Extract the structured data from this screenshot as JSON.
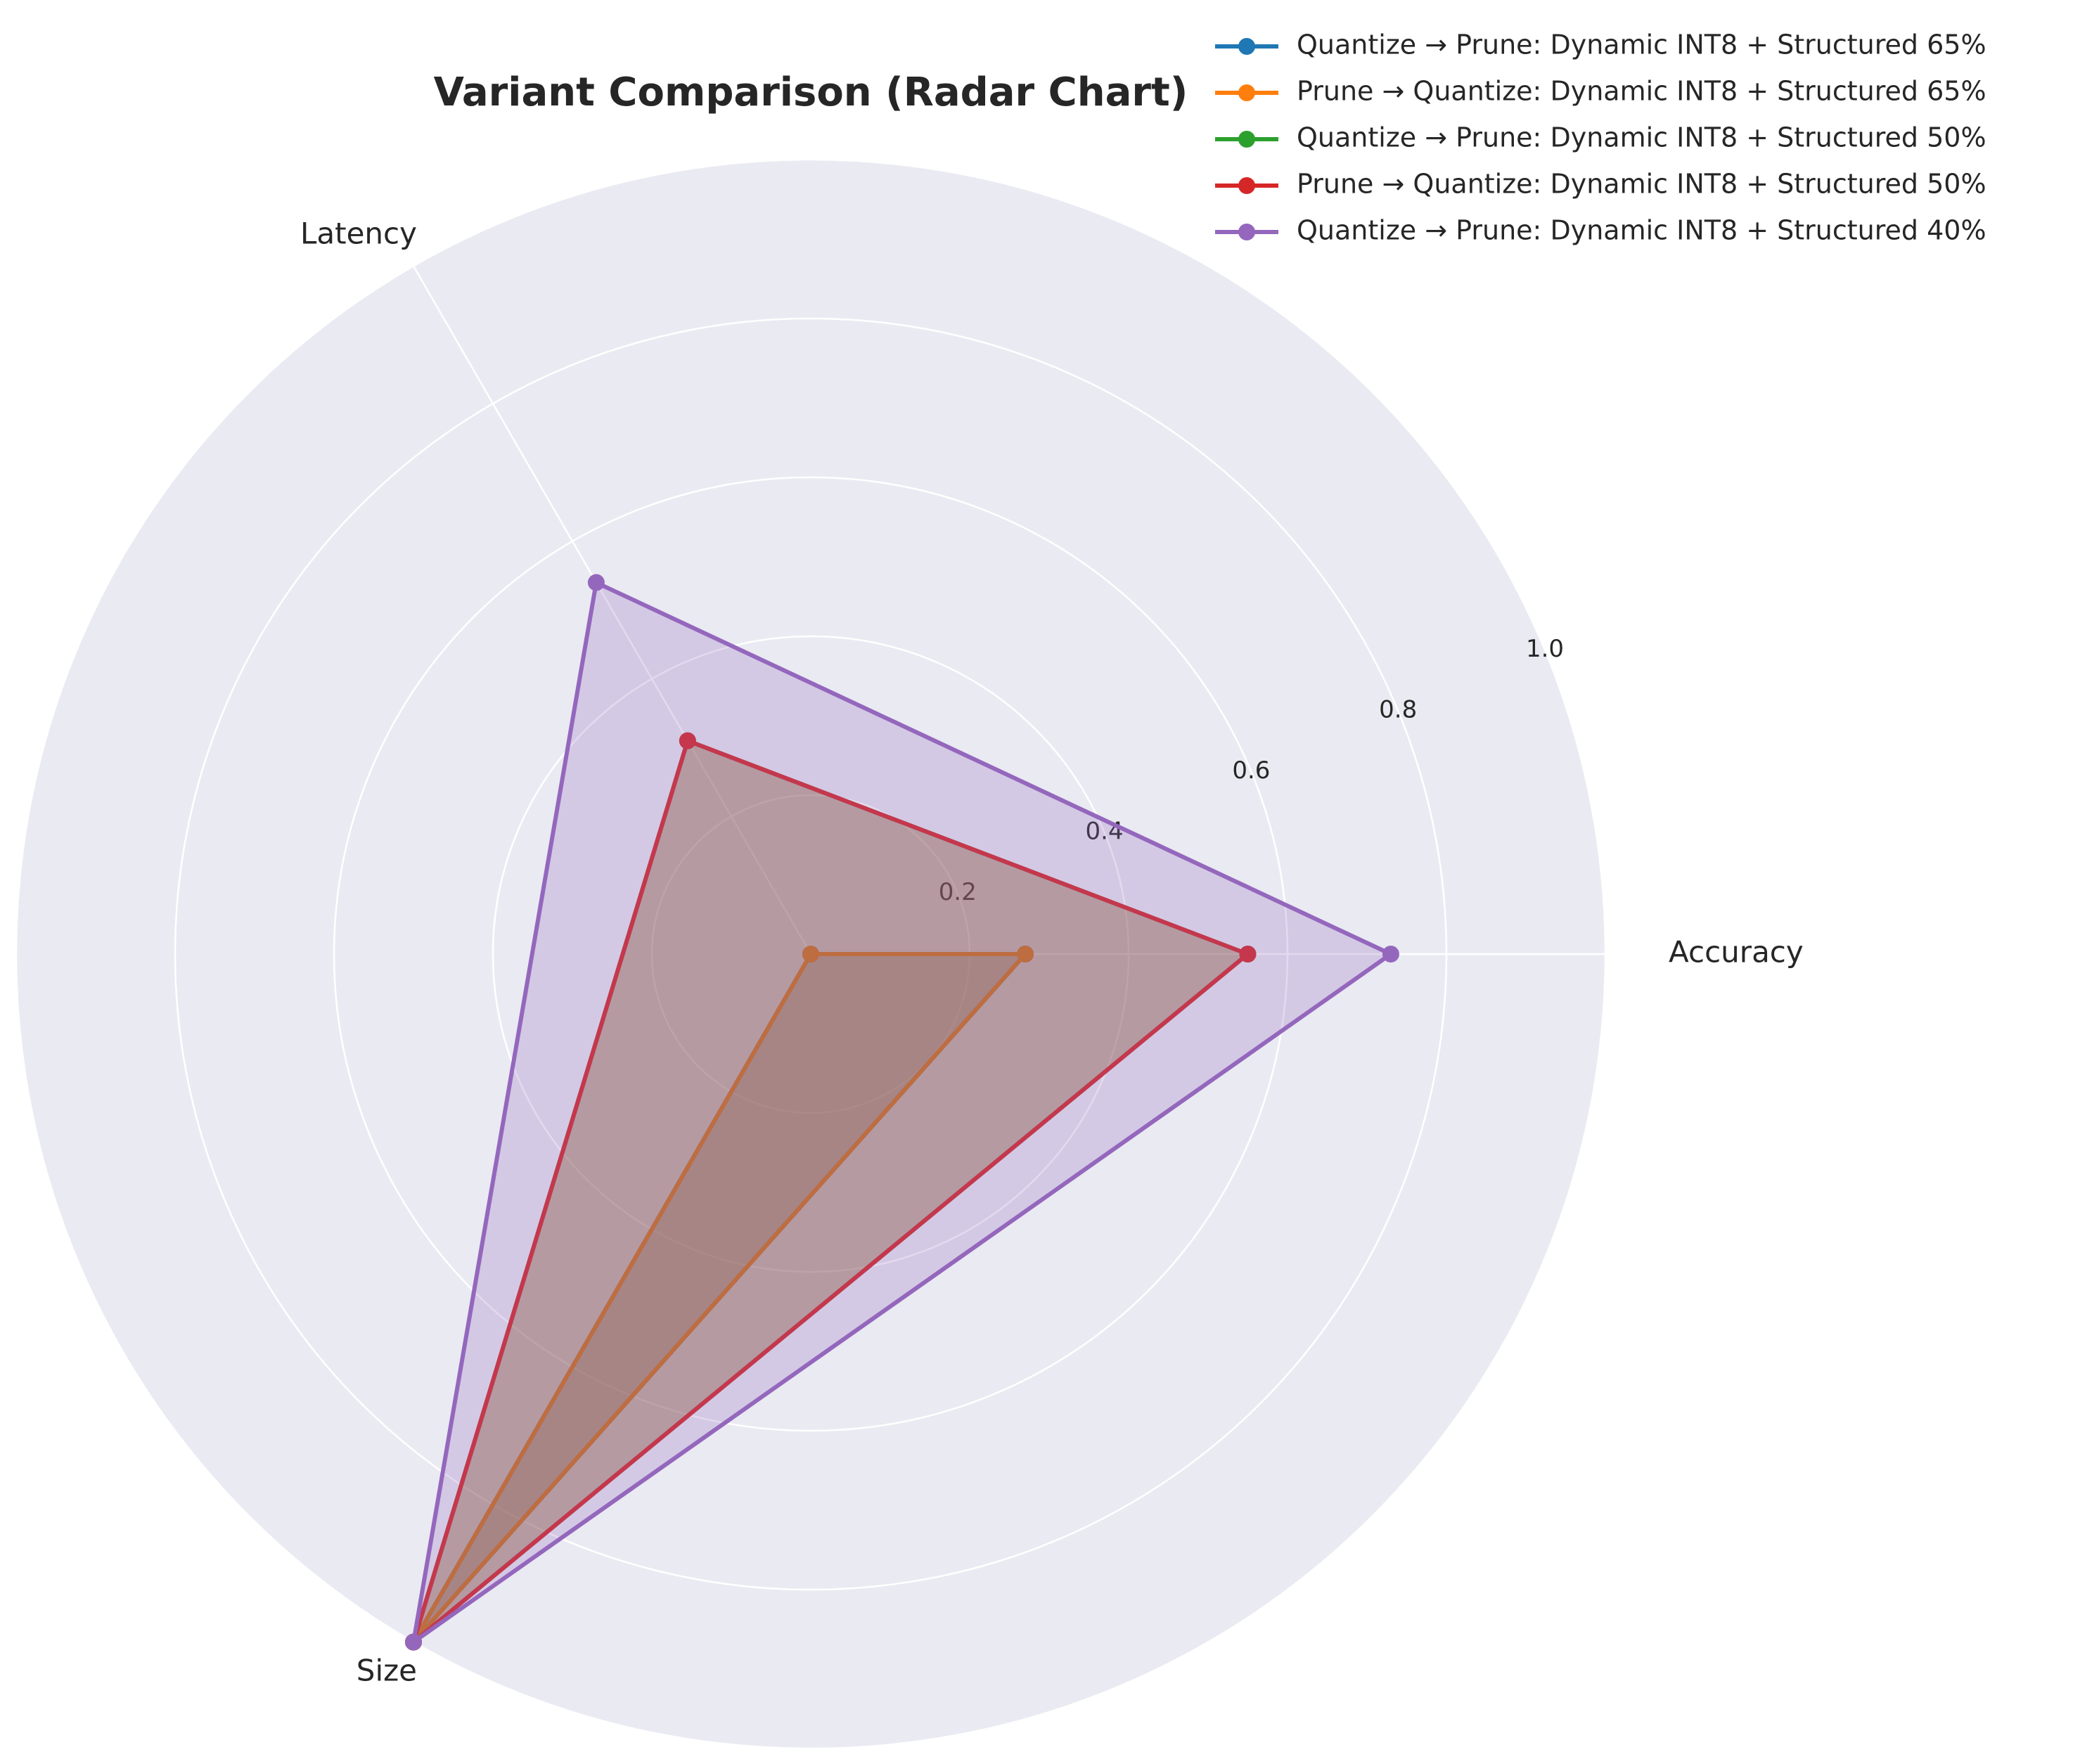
{
  "chart_data": {
    "type": "radar",
    "title": "Variant Comparison (Radar Chart)",
    "axes": [
      "Accuracy",
      "Latency",
      "Size"
    ],
    "radial_ticks": [
      "0.2",
      "0.4",
      "0.6",
      "0.8",
      "1.0"
    ],
    "rlim": [
      0,
      1.0
    ],
    "grid": true,
    "legend_position": "top-right",
    "series": [
      {
        "name": "Quantize → Prune: Dynamic INT8 + Structured 65%",
        "color": "#1f77b4",
        "values": [
          0.27,
          0.0,
          1.0
        ]
      },
      {
        "name": "Prune → Quantize: Dynamic INT8 + Structured 65%",
        "color": "#ff7f0e",
        "values": [
          0.27,
          0.0,
          1.0
        ]
      },
      {
        "name": "Quantize → Prune: Dynamic INT8 + Structured 50%",
        "color": "#2ca02c",
        "values": [
          0.55,
          0.31,
          1.0
        ]
      },
      {
        "name": "Prune → Quantize: Dynamic INT8 + Structured 50%",
        "color": "#d62728",
        "values": [
          0.55,
          0.31,
          1.0
        ]
      },
      {
        "name": "Quantize → Prune: Dynamic INT8 + Structured 40%",
        "color": "#9467bd",
        "values": [
          0.73,
          0.54,
          1.0
        ]
      }
    ]
  }
}
